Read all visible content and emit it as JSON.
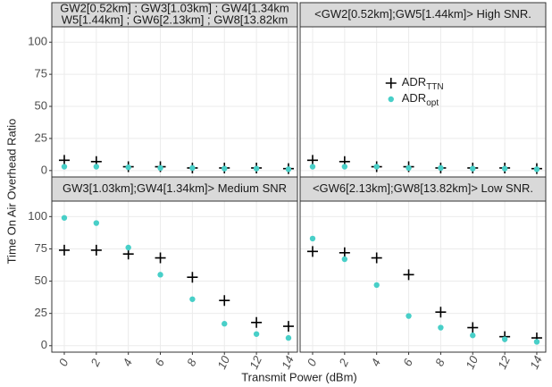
{
  "y_label": "Time On Air Overhead Ratio",
  "x_label": "Transmit Power  (dBm)",
  "chart_data": [
    {
      "type": "scatter",
      "title": [
        "GW2[0.52km] ; GW3[1.03km] ; GW4[1.34km",
        "W5[1.44km] ; GW6[2.13km] ; GW8[13.82km"
      ],
      "x": [
        0,
        2,
        4,
        6,
        8,
        10,
        12,
        14
      ],
      "series": [
        {
          "name": "ADR",
          "name_sub": "TTN",
          "color": "#000000",
          "marker": "cross",
          "values": [
            8,
            7,
            3,
            3,
            2,
            2,
            2,
            1.5
          ]
        },
        {
          "name": "ADR",
          "name_sub": "opt",
          "color": "#48cfc8",
          "marker": "circle",
          "values": [
            3,
            3,
            2.5,
            2,
            2,
            1.5,
            1.5,
            1
          ]
        }
      ],
      "xlim": [
        -0.78,
        14.56
      ],
      "ylim": [
        -5,
        112
      ],
      "xticks": [
        0,
        2,
        4,
        6,
        8,
        10,
        12,
        14
      ],
      "yticks": [
        0,
        25,
        50,
        75,
        100
      ],
      "grid": true
    },
    {
      "type": "scatter",
      "title": [
        "<GW2[0.52km];GW5[1.44km]> High SNR."
      ],
      "x": [
        0,
        2,
        4,
        6,
        8,
        10,
        12,
        14
      ],
      "series": [
        {
          "name": "ADR",
          "name_sub": "TTN",
          "color": "#000000",
          "marker": "cross",
          "values": [
            8,
            7,
            3,
            3,
            2,
            2,
            2,
            1.5
          ]
        },
        {
          "name": "ADR",
          "name_sub": "opt",
          "color": "#48cfc8",
          "marker": "circle",
          "values": [
            3,
            3,
            3,
            2,
            2,
            1.5,
            1.5,
            1
          ]
        }
      ],
      "xlim": [
        -0.78,
        14.56
      ],
      "ylim": [
        -5,
        112
      ],
      "xticks": [
        0,
        2,
        4,
        6,
        8,
        10,
        12,
        14
      ],
      "yticks": [
        0,
        25,
        50,
        75,
        100
      ],
      "grid": true,
      "legend": "inside"
    },
    {
      "type": "scatter",
      "title": [
        "GW3[1.03km];GW4[1.34km]> Medium SNR"
      ],
      "x": [
        0,
        2,
        4,
        6,
        8,
        10,
        12,
        14
      ],
      "series": [
        {
          "name": "ADR",
          "name_sub": "TTN",
          "color": "#000000",
          "marker": "cross",
          "values": [
            74,
            74,
            71,
            68,
            53,
            35,
            18,
            15
          ]
        },
        {
          "name": "ADR",
          "name_sub": "opt",
          "color": "#48cfc8",
          "marker": "circle",
          "values": [
            99,
            95,
            76,
            55,
            36,
            17,
            9,
            6
          ]
        }
      ],
      "xlim": [
        -0.78,
        14.56
      ],
      "ylim": [
        -5,
        112
      ],
      "xticks": [
        0,
        2,
        4,
        6,
        8,
        10,
        12,
        14
      ],
      "yticks": [
        0,
        25,
        50,
        75,
        100
      ],
      "grid": true
    },
    {
      "type": "scatter",
      "title": [
        "<GW6[2.13km];GW8[13.82km]> Low SNR."
      ],
      "x": [
        0,
        2,
        4,
        6,
        8,
        10,
        12,
        14
      ],
      "series": [
        {
          "name": "ADR",
          "name_sub": "TTN",
          "color": "#000000",
          "marker": "cross",
          "values": [
            73,
            72,
            68,
            55,
            26,
            14,
            7,
            6
          ]
        },
        {
          "name": "ADR",
          "name_sub": "opt",
          "color": "#48cfc8",
          "marker": "circle",
          "values": [
            83,
            67,
            47,
            23,
            14,
            8,
            5,
            3
          ]
        }
      ],
      "xlim": [
        -0.78,
        14.56
      ],
      "ylim": [
        -5,
        112
      ],
      "xticks": [
        0,
        2,
        4,
        6,
        8,
        10,
        12,
        14
      ],
      "yticks": [
        0,
        25,
        50,
        75,
        100
      ],
      "grid": true
    }
  ]
}
